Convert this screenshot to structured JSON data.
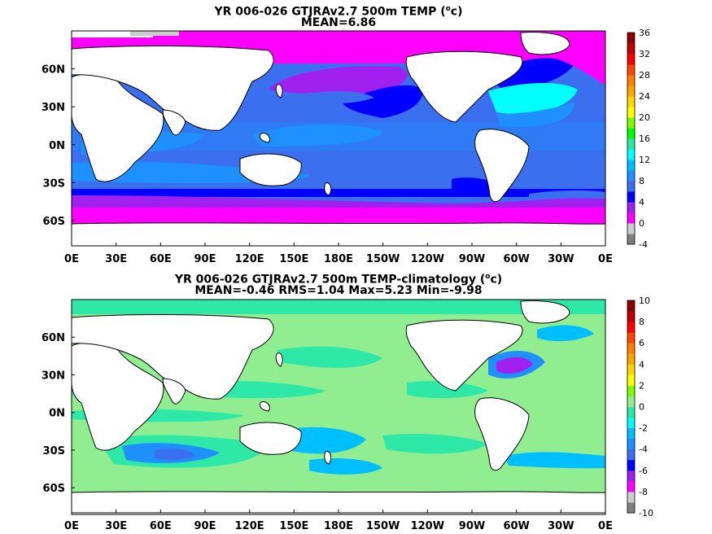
{
  "chart_data": [
    {
      "type": "heatmap",
      "title": "YR 006-026 GTJRAv2.7 500m TEMP (",
      "title_super": "o",
      "title_unit": "c)",
      "subtitle": "MEAN=6.86",
      "x_ticks": [
        "0E",
        "30E",
        "60E",
        "90E",
        "120E",
        "150E",
        "180E",
        "150W",
        "120W",
        "90W",
        "60W",
        "30W",
        "0E"
      ],
      "x_range": [
        0,
        360
      ],
      "y_ticks": [
        "60N",
        "30N",
        "0N",
        "30S",
        "60S"
      ],
      "y_tick_values": [
        60,
        30,
        0,
        -30,
        -60
      ],
      "y_range": [
        -80,
        90
      ],
      "colorbar_ticks": [
        "36",
        "32",
        "28",
        "24",
        "20",
        "16",
        "12",
        "8",
        "4",
        "0",
        "-4"
      ],
      "colorbar_range": [
        -4,
        36
      ],
      "colorbar_colors": [
        "#7f7f7f",
        "#cccccc",
        "#ff00ff",
        "#a020f0",
        "#0000ff",
        "#3a6ff0",
        "#1e90ff",
        "#00bfff",
        "#00ffff",
        "#2ee8a8",
        "#00ff00",
        "#7cfc00",
        "#ffff00",
        "#ffd700",
        "#ffa500",
        "#ff7f00",
        "#ff4500",
        "#ff0000",
        "#c00000",
        "#8b0000"
      ],
      "mean": 6.86
    },
    {
      "type": "heatmap",
      "title": "YR 006-026 GTJRAv2.7 500m TEMP-climatology (",
      "title_super": "o",
      "title_unit": "c)",
      "subtitle": "MEAN=-0.46   RMS=1.04   Max=5.23   Min=-9.98",
      "x_ticks": [
        "0E",
        "30E",
        "60E",
        "90E",
        "120E",
        "150E",
        "180E",
        "150W",
        "120W",
        "90W",
        "60W",
        "30W",
        "0E"
      ],
      "x_range": [
        0,
        360
      ],
      "y_ticks": [
        "60N",
        "30N",
        "0N",
        "30S",
        "60S"
      ],
      "y_tick_values": [
        60,
        30,
        0,
        -30,
        -60
      ],
      "y_range": [
        -80,
        90
      ],
      "colorbar_ticks": [
        "10",
        "8",
        "6",
        "4",
        "2",
        "0",
        "-2",
        "-4",
        "-6",
        "-8",
        "-10"
      ],
      "colorbar_range": [
        -10,
        10
      ],
      "colorbar_colors": [
        "#7f7f7f",
        "#cccccc",
        "#ff00ff",
        "#a020f0",
        "#0000ff",
        "#3a6ff0",
        "#1e90ff",
        "#00bfff",
        "#00ffff",
        "#2ee8a8",
        "#90ee90",
        "#7cfc00",
        "#ffff00",
        "#ffd700",
        "#ffa500",
        "#ff7f00",
        "#ff4500",
        "#ff0000",
        "#c00000",
        "#8b0000"
      ],
      "mean": -0.46,
      "rms": 1.04,
      "max": 5.23,
      "min": -9.98
    }
  ],
  "colors": {
    "land": "#ffffff",
    "coast": "#000000"
  }
}
